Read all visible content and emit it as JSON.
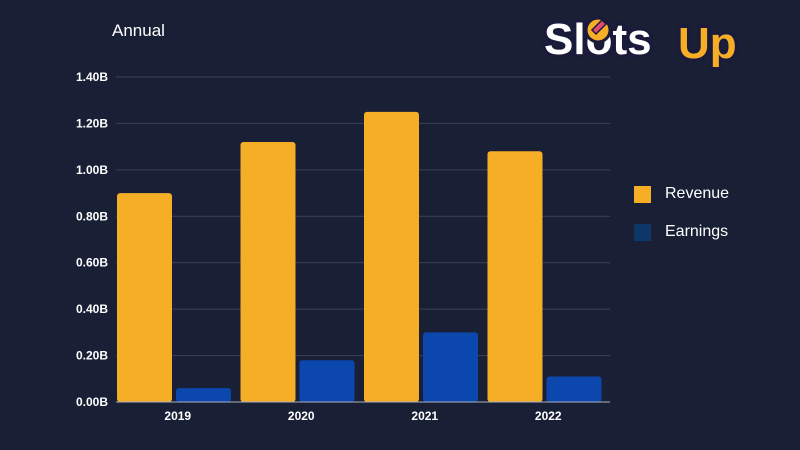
{
  "colors": {
    "background": "#192036",
    "revenue": "#F6AE27",
    "earnings": "#0B47AD",
    "earnings_legend": "#0D3767",
    "grid": "#3b4254"
  },
  "logo": {
    "text_part1": "Slots",
    "text_part2": "Up",
    "icon": "rocket-moon-icon"
  },
  "chart_data": {
    "type": "bar",
    "title": "Annual",
    "xlabel": "",
    "ylabel": "",
    "categories": [
      "2019",
      "2020",
      "2021",
      "2022"
    ],
    "series": [
      {
        "name": "Revenue",
        "values": [
          0.9,
          1.12,
          1.25,
          1.08
        ]
      },
      {
        "name": "Earnings",
        "values": [
          0.06,
          0.18,
          0.3,
          0.11
        ]
      }
    ],
    "ylim": [
      0,
      1.4
    ],
    "yticks": [
      0,
      0.2,
      0.4,
      0.6,
      0.8,
      1.0,
      1.2,
      1.4
    ],
    "ytick_labels": [
      "0.00B",
      "0.20B",
      "0.40B",
      "0.60B",
      "0.80B",
      "1.00B",
      "1.20B",
      "1.40B"
    ],
    "grid": true,
    "legend": "right"
  }
}
